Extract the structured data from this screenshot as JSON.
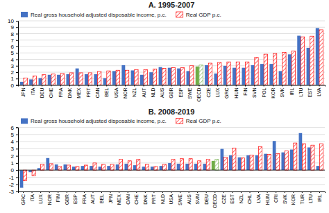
{
  "chart_data": [
    {
      "type": "bar",
      "title": "A. 1995-2007",
      "categories": [
        "JPN",
        "ITA",
        "DEU",
        "CHE",
        "FRA",
        "DNK",
        "MEX",
        "PRT",
        "CAN",
        "BEL",
        "USA",
        "NOR",
        "NZL",
        "AUT",
        "NLD",
        "AUS",
        "GBR",
        "ESP",
        "SWE",
        "OECD",
        "CZE",
        "LUX",
        "GRC",
        "HUN",
        "FIN",
        "SVN",
        "POL",
        "KOR",
        "SVK",
        "IRL",
        "LTU",
        "EST",
        "LVA"
      ],
      "series": [
        {
          "name": "Real gross household adjusted disposable income, p.c.",
          "color": "#4472C4",
          "colors": [
            "#4472C4",
            "#4472C4",
            "#4472C4",
            "#4472C4",
            "#4472C4",
            "#4472C4",
            "#4472C4",
            "#4472C4",
            "#4472C4",
            "#4472C4",
            "#4472C4",
            "#4472C4",
            "#4472C4",
            "#4472C4",
            "#4472C4",
            "#4472C4",
            "#4472C4",
            "#4472C4",
            "#4472C4",
            "#70AD47",
            "#4472C4",
            "#4472C4",
            "#4472C4",
            "#4472C4",
            "#4472C4",
            "#4472C4",
            "#4472C4",
            "#4472C4",
            "#4472C4",
            "#4472C4",
            "#4472C4",
            "#4472C4",
            "#4472C4"
          ],
          "values": [
            0.5,
            0.9,
            1.1,
            1.6,
            1.6,
            1.7,
            2.6,
            1.7,
            1.7,
            1.1,
            2.2,
            3.1,
            2.3,
            1.6,
            2.0,
            2.8,
            2.7,
            2.6,
            2.2,
            2.9,
            3.1,
            1.8,
            3.0,
            2.7,
            2.7,
            3.1,
            3.3,
            3.3,
            2.2,
            4.8,
            7.7,
            5.8,
            8.9
          ]
        },
        {
          "name": "Real GDP p.c.",
          "color": "#FF0000",
          "colors": [
            "#FF0000",
            "#FF0000",
            "#FF0000",
            "#FF0000",
            "#FF0000",
            "#FF0000",
            "#FF0000",
            "#FF0000",
            "#FF0000",
            "#FF0000",
            "#FF0000",
            "#FF0000",
            "#FF0000",
            "#FF0000",
            "#FF0000",
            "#FF0000",
            "#FF0000",
            "#FF0000",
            "#FF0000",
            "#70AD47",
            "#FF0000",
            "#FF0000",
            "#FF0000",
            "#FF0000",
            "#FF0000",
            "#FF0000",
            "#FF0000",
            "#FF0000",
            "#FF0000",
            "#FF0000",
            "#FF0000",
            "#FF0000",
            "#FF0000"
          ],
          "values": [
            1.1,
            1.4,
            1.6,
            1.7,
            1.8,
            1.9,
            1.9,
            1.9,
            2.1,
            2.2,
            2.3,
            2.3,
            2.4,
            2.4,
            2.5,
            2.6,
            2.7,
            2.7,
            3.0,
            3.1,
            3.4,
            3.5,
            3.6,
            3.6,
            3.6,
            4.3,
            4.8,
            4.9,
            5.1,
            5.3,
            7.5,
            7.6,
            8.6
          ]
        }
      ],
      "ylim": [
        0,
        10
      ],
      "yticks": [
        0,
        1,
        2,
        3,
        4,
        5,
        6,
        7,
        8,
        9,
        10
      ],
      "grid": true,
      "legend": "upper left"
    },
    {
      "type": "bar",
      "title": "B. 2008-2019",
      "categories": [
        "GRC",
        "ITA",
        "LUX",
        "NOR",
        "FIN",
        "GBR",
        "ESP",
        "FRA",
        "AUT",
        "BEL",
        "JPN",
        "MEX",
        "CAN",
        "CHE",
        "DNK",
        "PRT",
        "NLD",
        "USA",
        "SWE",
        "AUS",
        "SVN",
        "DEU",
        "OECD",
        "CZE",
        "EST",
        "NZL",
        "CHL",
        "LVA",
        "HUN",
        "CRI",
        "SVK",
        "KOR",
        "TUR",
        "LTU",
        "IRL"
      ],
      "series": [
        {
          "name": "Real gross household adjusted disposable income, p.c.",
          "color": "#4472C4",
          "colors": [
            "#4472C4",
            "#4472C4",
            "#4472C4",
            "#4472C4",
            "#4472C4",
            "#4472C4",
            "#4472C4",
            "#4472C4",
            "#4472C4",
            "#4472C4",
            "#4472C4",
            "#4472C4",
            "#4472C4",
            "#4472C4",
            "#4472C4",
            "#4472C4",
            "#4472C4",
            "#4472C4",
            "#4472C4",
            "#4472C4",
            "#4472C4",
            "#4472C4",
            "#70AD47",
            "#4472C4",
            "#4472C4",
            "#4472C4",
            "#4472C4",
            "#4472C4",
            "#4472C4",
            "#4472C4",
            "#4472C4",
            "#4472C4",
            "#4472C4",
            "#4472C4",
            "#4472C4"
          ],
          "values": [
            -2.5,
            -0.3,
            0.3,
            1.7,
            0.8,
            0.8,
            0.5,
            0.6,
            0.6,
            0.5,
            0.6,
            0.8,
            0.9,
            0.7,
            0.5,
            0.5,
            0.6,
            1.0,
            0.9,
            0.9,
            0.9,
            0.9,
            1.3,
            3.0,
            2.1,
            1.8,
            2.1,
            2.1,
            2.3,
            4.1,
            2.5,
            2.9,
            5.2,
            3.2,
            0.6
          ]
        },
        {
          "name": "Real GDP p.c.",
          "color": "#FF0000",
          "colors": [
            "#FF0000",
            "#FF0000",
            "#FF0000",
            "#FF0000",
            "#FF0000",
            "#FF0000",
            "#FF0000",
            "#FF0000",
            "#FF0000",
            "#FF0000",
            "#FF0000",
            "#FF0000",
            "#FF0000",
            "#FF0000",
            "#FF0000",
            "#FF0000",
            "#FF0000",
            "#FF0000",
            "#FF0000",
            "#FF0000",
            "#FF0000",
            "#FF0000",
            "#70AD47",
            "#FF0000",
            "#FF0000",
            "#FF0000",
            "#FF0000",
            "#FF0000",
            "#FF0000",
            "#FF0000",
            "#FF0000",
            "#FF0000",
            "#FF0000",
            "#FF0000",
            "#FF0000"
          ],
          "values": [
            -1.5,
            -0.8,
            0.8,
            0.9,
            0.5,
            0.7,
            0.5,
            0.7,
            1.0,
            0.8,
            0.8,
            1.5,
            1.3,
            1.5,
            0.8,
            0.5,
            0.8,
            1.5,
            1.6,
            1.6,
            1.3,
            1.5,
            1.5,
            1.8,
            3.1,
            1.7,
            2.1,
            3.3,
            2.2,
            2.3,
            2.7,
            3.8,
            3.7,
            3.5,
            3.7
          ]
        }
      ],
      "ylim": [
        -3,
        6
      ],
      "yticks": [
        -3,
        -2,
        -1,
        0,
        1,
        2,
        3,
        4,
        5,
        6
      ],
      "grid": true,
      "legend": "upper left"
    }
  ]
}
